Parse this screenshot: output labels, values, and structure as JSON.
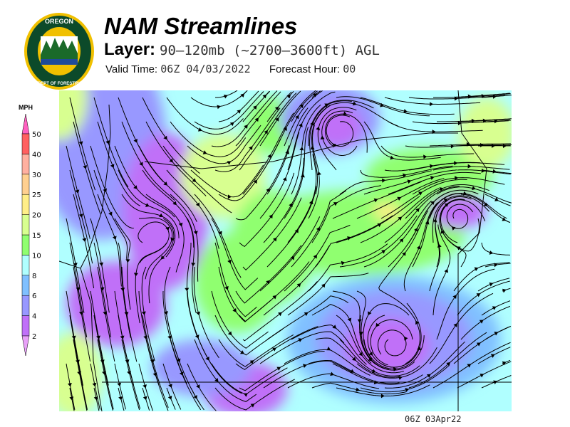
{
  "header": {
    "title": "NAM Streamlines",
    "layer_label": "Layer:",
    "layer_value": "90–120mb (~2700–3600ft) AGL",
    "valid_label": "Valid Time:",
    "valid_value": "06Z 04/03/2022",
    "forecast_label": "Forecast Hour:",
    "forecast_value": "00"
  },
  "logo": {
    "text_top": "OREGON",
    "text_bottom": "DEPARTMENT OF FORESTRY"
  },
  "legend": {
    "unit": "MPH",
    "bins": [
      {
        "label": "2",
        "color": "#c070f8"
      },
      {
        "label": "4",
        "color": "#9898ff"
      },
      {
        "label": "6",
        "color": "#80c0ff"
      },
      {
        "label": "8",
        "color": "#b0ffff"
      },
      {
        "label": "10",
        "color": "#90ff70"
      },
      {
        "label": "15",
        "color": "#d8ff90"
      },
      {
        "label": "20",
        "color": "#ffee88"
      },
      {
        "label": "25",
        "color": "#ffd090"
      },
      {
        "label": "30",
        "color": "#ffb0a0"
      },
      {
        "label": "40",
        "color": "#ff6060"
      },
      {
        "label": "50",
        "color": "#ff60c0"
      }
    ],
    "low_color": "#e8a0f8"
  },
  "footer": {
    "stamp": "06Z 03Apr22"
  }
}
